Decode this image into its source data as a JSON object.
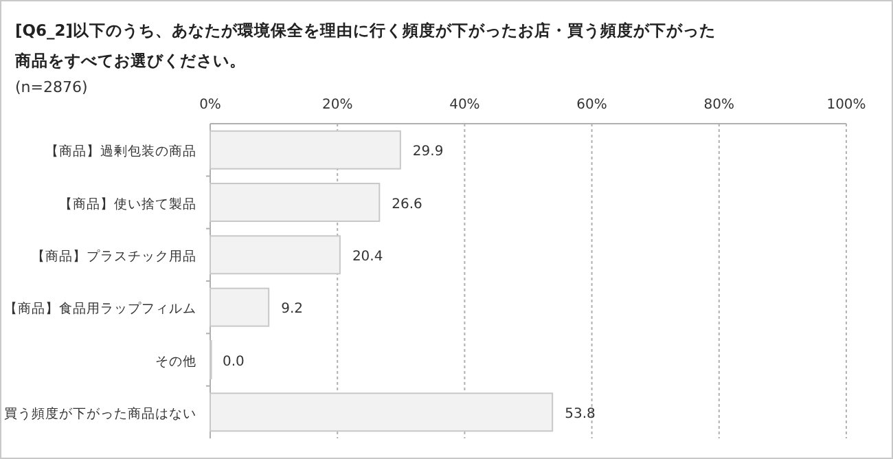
{
  "chart_data": {
    "type": "bar",
    "orientation": "horizontal",
    "title": "[Q6_2]以下のうち、あなたが環境保全を理由に行く頻度が下がったお店・買う頻度が下がった商品をすべてお選びください。",
    "subtitle": "(n=2876)",
    "categories": [
      "【商品】過剰包装の商品",
      "【商品】使い捨て製品",
      "【商品】プラスチック用品",
      "【商品】食品用ラップフィルム",
      "その他",
      "買う頻度が下がった商品はない"
    ],
    "values": [
      29.9,
      26.6,
      20.4,
      9.2,
      0.0,
      53.8
    ],
    "value_labels": [
      "29.9",
      "26.6",
      "20.4",
      "9.2",
      "0.0",
      "53.8"
    ],
    "color": "#f2f2f2",
    "xlim": [
      0,
      100
    ],
    "xticks": [
      {
        "value": 0,
        "label": "0%"
      },
      {
        "value": 20,
        "label": "20%"
      },
      {
        "value": 40,
        "label": "40%"
      },
      {
        "value": 60,
        "label": "60%"
      },
      {
        "value": 80,
        "label": "80%"
      },
      {
        "value": 100,
        "label": "100%"
      }
    ],
    "grid": "x"
  }
}
